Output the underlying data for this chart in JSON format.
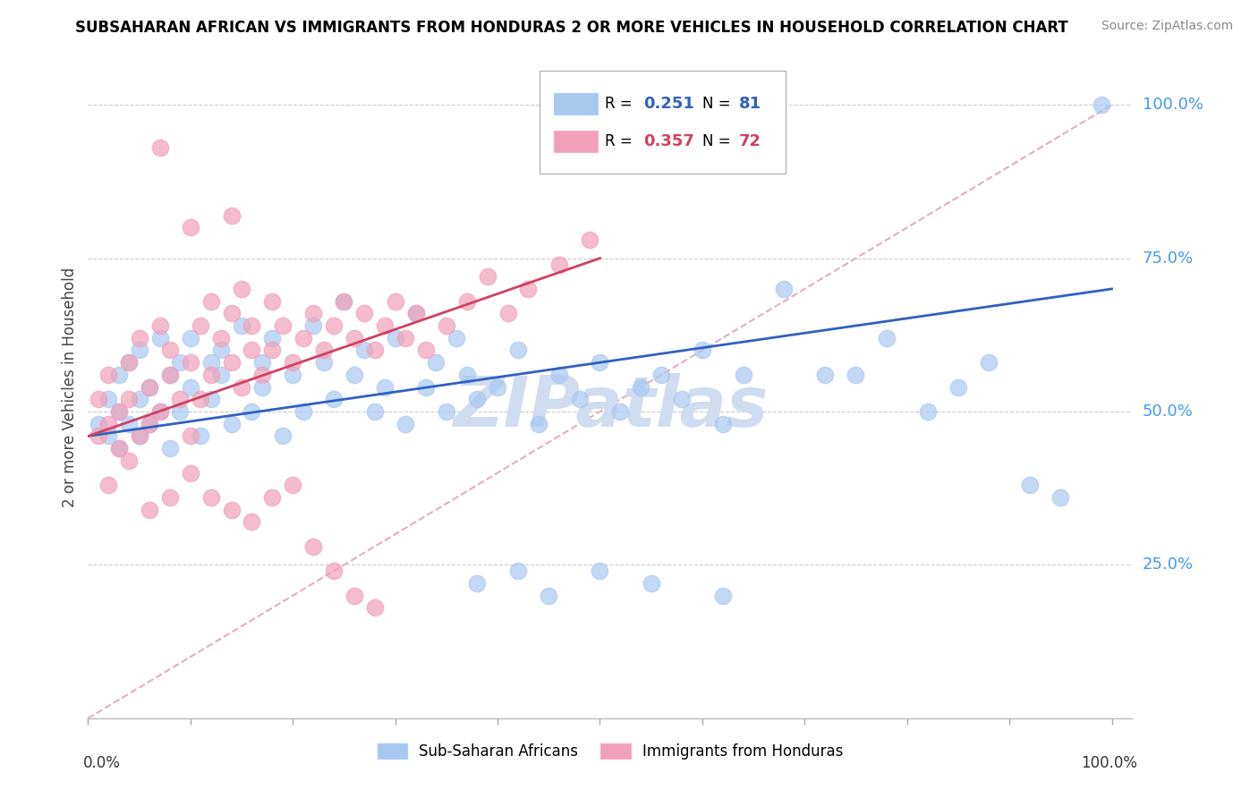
{
  "title": "SUBSAHARAN AFRICAN VS IMMIGRANTS FROM HONDURAS 2 OR MORE VEHICLES IN HOUSEHOLD CORRELATION CHART",
  "source": "Source: ZipAtlas.com",
  "ylabel": "2 or more Vehicles in Household",
  "blue_color": "#A8C8F0",
  "pink_color": "#F0A0B8",
  "blue_line_color": "#3060C0",
  "pink_line_color": "#D04060",
  "diagonal_color": "#E0B0C0",
  "watermark": "ZIPatlas",
  "watermark_color": "#D0DCF0",
  "legend_blue_r": "0.251",
  "legend_blue_n": "81",
  "legend_pink_r": "0.357",
  "legend_pink_n": "72",
  "ytick_color": "#4499EE",
  "blue_scatter": {
    "x": [
      0.01,
      0.02,
      0.02,
      0.03,
      0.03,
      0.03,
      0.04,
      0.04,
      0.05,
      0.05,
      0.05,
      0.06,
      0.06,
      0.07,
      0.07,
      0.08,
      0.08,
      0.09,
      0.09,
      0.1,
      0.1,
      0.11,
      0.12,
      0.12,
      0.13,
      0.13,
      0.14,
      0.15,
      0.16,
      0.17,
      0.17,
      0.18,
      0.19,
      0.2,
      0.21,
      0.22,
      0.23,
      0.24,
      0.25,
      0.26,
      0.27,
      0.28,
      0.29,
      0.3,
      0.31,
      0.32,
      0.33,
      0.34,
      0.35,
      0.36,
      0.37,
      0.38,
      0.4,
      0.42,
      0.44,
      0.46,
      0.48,
      0.5,
      0.52,
      0.54,
      0.56,
      0.58,
      0.6,
      0.62,
      0.64,
      0.68,
      0.72,
      0.75,
      0.78,
      0.82,
      0.85,
      0.88,
      0.92,
      0.95,
      0.99,
      0.38,
      0.42,
      0.45,
      0.5,
      0.55,
      0.62
    ],
    "y": [
      0.48,
      0.46,
      0.52,
      0.5,
      0.44,
      0.56,
      0.48,
      0.58,
      0.46,
      0.52,
      0.6,
      0.54,
      0.48,
      0.62,
      0.5,
      0.56,
      0.44,
      0.5,
      0.58,
      0.54,
      0.62,
      0.46,
      0.58,
      0.52,
      0.56,
      0.6,
      0.48,
      0.64,
      0.5,
      0.54,
      0.58,
      0.62,
      0.46,
      0.56,
      0.5,
      0.64,
      0.58,
      0.52,
      0.68,
      0.56,
      0.6,
      0.5,
      0.54,
      0.62,
      0.48,
      0.66,
      0.54,
      0.58,
      0.5,
      0.62,
      0.56,
      0.52,
      0.54,
      0.6,
      0.48,
      0.56,
      0.52,
      0.58,
      0.5,
      0.54,
      0.56,
      0.52,
      0.6,
      0.48,
      0.56,
      0.7,
      0.56,
      0.56,
      0.62,
      0.5,
      0.54,
      0.58,
      0.38,
      0.36,
      1.0,
      0.22,
      0.24,
      0.2,
      0.24,
      0.22,
      0.2
    ]
  },
  "pink_scatter": {
    "x": [
      0.01,
      0.01,
      0.02,
      0.02,
      0.03,
      0.03,
      0.04,
      0.04,
      0.05,
      0.05,
      0.06,
      0.06,
      0.07,
      0.07,
      0.08,
      0.08,
      0.09,
      0.1,
      0.1,
      0.11,
      0.11,
      0.12,
      0.12,
      0.13,
      0.14,
      0.14,
      0.15,
      0.15,
      0.16,
      0.16,
      0.17,
      0.18,
      0.18,
      0.19,
      0.2,
      0.21,
      0.22,
      0.23,
      0.24,
      0.25,
      0.26,
      0.27,
      0.28,
      0.29,
      0.3,
      0.31,
      0.32,
      0.33,
      0.35,
      0.37,
      0.39,
      0.41,
      0.43,
      0.46,
      0.49,
      0.02,
      0.04,
      0.06,
      0.08,
      0.1,
      0.12,
      0.14,
      0.16,
      0.18,
      0.2,
      0.22,
      0.24,
      0.26,
      0.28,
      0.07,
      0.1,
      0.14
    ],
    "y": [
      0.46,
      0.52,
      0.48,
      0.56,
      0.5,
      0.44,
      0.58,
      0.52,
      0.46,
      0.62,
      0.54,
      0.48,
      0.64,
      0.5,
      0.56,
      0.6,
      0.52,
      0.58,
      0.46,
      0.64,
      0.52,
      0.68,
      0.56,
      0.62,
      0.58,
      0.66,
      0.54,
      0.7,
      0.6,
      0.64,
      0.56,
      0.68,
      0.6,
      0.64,
      0.58,
      0.62,
      0.66,
      0.6,
      0.64,
      0.68,
      0.62,
      0.66,
      0.6,
      0.64,
      0.68,
      0.62,
      0.66,
      0.6,
      0.64,
      0.68,
      0.72,
      0.66,
      0.7,
      0.74,
      0.78,
      0.38,
      0.42,
      0.34,
      0.36,
      0.4,
      0.36,
      0.34,
      0.32,
      0.36,
      0.38,
      0.28,
      0.24,
      0.2,
      0.18,
      0.93,
      0.8,
      0.82
    ]
  }
}
